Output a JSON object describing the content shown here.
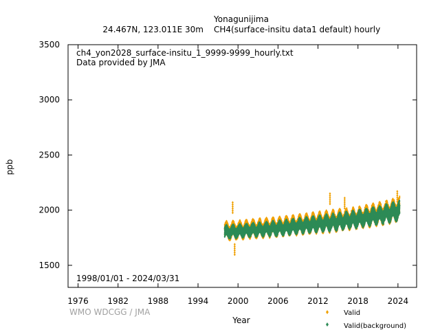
{
  "header": {
    "station": "Yonagunijima",
    "location": "24.467N, 123.011E 30m",
    "series_desc": "CH4(surface-insitu data1 default) hourly"
  },
  "annotations": {
    "filename": "ch4_yon2028_surface-insitu_1_9999-9999_hourly.txt",
    "provider": "Data provided by JMA",
    "date_range": "1998/01/01 - 2024/03/31"
  },
  "credit": "WMO WDCGG / JMA",
  "colors": {
    "valid": "#f0a000",
    "background": "#2e8b57"
  },
  "chart_data": {
    "type": "scatter",
    "xlabel": "Year",
    "ylabel": "ppb",
    "xlim": [
      1974.5,
      2026.8
    ],
    "ylim": [
      1300,
      3500
    ],
    "x_ticks": [
      1976,
      1982,
      1988,
      1994,
      2000,
      2006,
      2012,
      2018,
      2024
    ],
    "y_ticks": [
      1500,
      2000,
      2500,
      3000,
      3500
    ],
    "grid": false,
    "legend_position": "bottom-right",
    "series": [
      {
        "name": "Valid",
        "color": "#f0a000",
        "x_range": [
          1998.0,
          2024.25
        ],
        "y_band_low": [
          [
            1998,
            1740
          ],
          [
            2002,
            1760
          ],
          [
            2006,
            1775
          ],
          [
            2010,
            1800
          ],
          [
            2014,
            1820
          ],
          [
            2018,
            1850
          ],
          [
            2022,
            1890
          ],
          [
            2024.25,
            1920
          ]
        ],
        "y_band_high": [
          [
            1998,
            1880
          ],
          [
            2002,
            1900
          ],
          [
            2006,
            1920
          ],
          [
            2010,
            1950
          ],
          [
            2014,
            1980
          ],
          [
            2018,
            2010
          ],
          [
            2022,
            2060
          ],
          [
            2024.25,
            2100
          ]
        ],
        "spikes": [
          [
            1999.2,
            2070
          ],
          [
            1999.5,
            1690
          ],
          [
            2013.8,
            2150
          ],
          [
            2016.0,
            2110
          ],
          [
            2023.9,
            2170
          ]
        ]
      },
      {
        "name": "Valid(background)",
        "color": "#2e8b57",
        "x_range": [
          1998.0,
          2024.25
        ],
        "y_band_low": [
          [
            1998,
            1750
          ],
          [
            2002,
            1770
          ],
          [
            2006,
            1780
          ],
          [
            2010,
            1805
          ],
          [
            2014,
            1825
          ],
          [
            2018,
            1855
          ],
          [
            2022,
            1895
          ],
          [
            2024.25,
            1925
          ]
        ],
        "y_band_high": [
          [
            1998,
            1850
          ],
          [
            2002,
            1870
          ],
          [
            2006,
            1890
          ],
          [
            2010,
            1920
          ],
          [
            2014,
            1950
          ],
          [
            2018,
            1985
          ],
          [
            2022,
            2030
          ],
          [
            2024.25,
            2070
          ]
        ]
      }
    ]
  }
}
